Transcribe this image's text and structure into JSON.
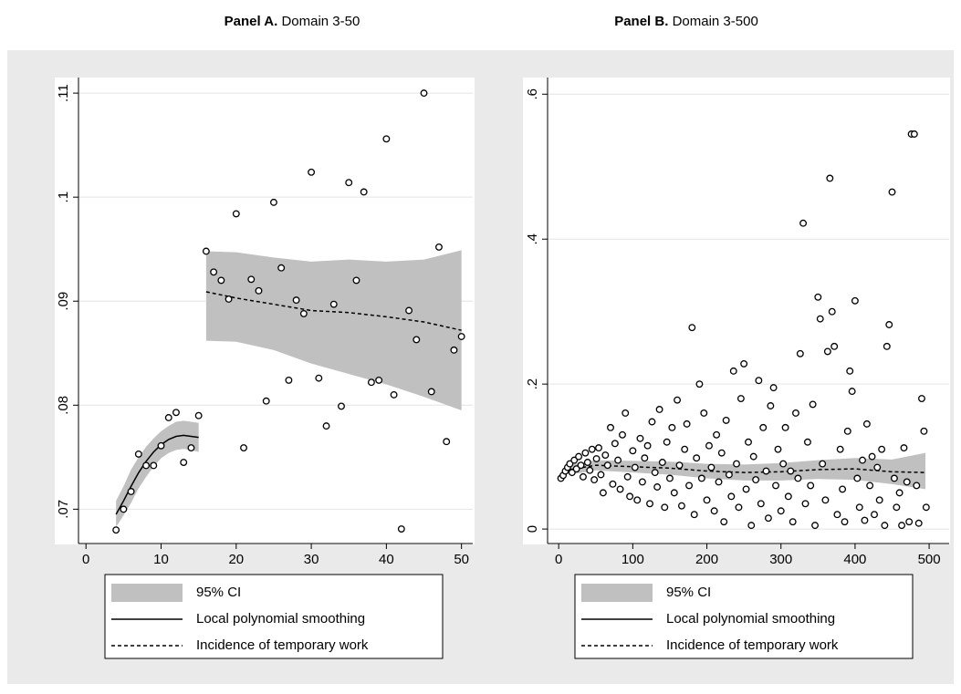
{
  "chart_data": [
    {
      "type": "scatter",
      "panel": "Panel A.",
      "title": "Domain 3-50",
      "x": [
        4,
        5,
        6,
        7,
        8,
        9,
        10,
        11,
        12,
        13,
        14,
        15,
        16,
        17,
        18,
        19,
        20,
        21,
        22,
        23,
        24,
        25,
        26,
        27,
        28,
        29,
        30,
        31,
        32,
        33,
        34,
        35,
        36,
        37,
        38,
        39,
        40,
        41,
        42,
        43,
        44,
        45,
        46,
        47,
        48,
        49,
        50
      ],
      "values": [
        0.068,
        0.07,
        0.0717,
        0.0753,
        0.0742,
        0.0742,
        0.0761,
        0.0788,
        0.0793,
        0.0745,
        0.0759,
        0.079,
        0.0948,
        0.0928,
        0.092,
        0.0902,
        0.0984,
        0.0759,
        0.0921,
        0.091,
        0.0804,
        0.0995,
        0.0932,
        0.0824,
        0.0901,
        0.0888,
        0.1024,
        0.0826,
        0.078,
        0.0897,
        0.0799,
        0.1014,
        0.092,
        0.1005,
        0.0822,
        0.0824,
        0.1056,
        0.081,
        0.0681,
        0.0891,
        0.0863,
        0.11,
        0.0813,
        0.0952,
        0.0765,
        0.0853,
        0.0866
      ],
      "ci_label": "95% CI",
      "ci_color": "#c0c0c0",
      "smooth": {
        "name": "Local polynomial smoothing",
        "color": "#000000",
        "x": [
          4,
          5,
          6,
          7,
          8,
          9,
          10,
          11,
          12,
          13,
          14,
          15
        ],
        "values": [
          0.0695,
          0.0708,
          0.0722,
          0.0735,
          0.0746,
          0.0755,
          0.0762,
          0.0767,
          0.077,
          0.0771,
          0.077,
          0.0769
        ],
        "lower": [
          0.0683,
          0.0694,
          0.0706,
          0.072,
          0.0731,
          0.0741,
          0.0749,
          0.0754,
          0.0757,
          0.0758,
          0.0757,
          0.0755
        ],
        "upper": [
          0.0708,
          0.0722,
          0.0738,
          0.075,
          0.076,
          0.0768,
          0.0775,
          0.078,
          0.0784,
          0.0785,
          0.0784,
          0.0783
        ]
      },
      "trend": {
        "name": "Incidence of temporary work",
        "color": "#000000",
        "x": [
          16,
          20,
          25,
          30,
          35,
          40,
          45,
          50
        ],
        "values": [
          0.0909,
          0.0903,
          0.0897,
          0.0891,
          0.0889,
          0.0885,
          0.088,
          0.0872
        ],
        "lower": [
          0.0862,
          0.0861,
          0.0853,
          0.084,
          0.083,
          0.082,
          0.0808,
          0.0795
        ],
        "upper": [
          0.0948,
          0.0947,
          0.0942,
          0.0938,
          0.094,
          0.0938,
          0.094,
          0.0949
        ]
      },
      "xlim": [
        -1,
        51.5
      ],
      "ylim": [
        0.0667,
        0.1115
      ],
      "xticks": [
        0,
        10,
        20,
        30,
        40,
        50
      ],
      "yticks": [
        {
          "value": 0.07,
          "label": ".07"
        },
        {
          "value": 0.08,
          "label": ".08"
        },
        {
          "value": 0.09,
          "label": ".09"
        },
        {
          "value": 0.1,
          "label": ".1"
        },
        {
          "value": 0.11,
          "label": ".11"
        }
      ],
      "grid": true
    },
    {
      "type": "scatter",
      "panel": "Panel B.",
      "title": "Domain 3-500",
      "x": [
        3,
        6,
        9,
        12,
        15,
        18,
        21,
        24,
        27,
        30,
        33,
        36,
        39,
        42,
        45,
        48,
        51,
        54,
        57,
        60,
        63,
        66,
        70,
        73,
        76,
        80,
        83,
        86,
        90,
        93,
        96,
        100,
        103,
        106,
        110,
        113,
        116,
        120,
        123,
        126,
        130,
        133,
        136,
        140,
        143,
        146,
        150,
        153,
        156,
        160,
        163,
        166,
        170,
        173,
        176,
        180,
        183,
        186,
        190,
        193,
        196,
        200,
        203,
        206,
        210,
        213,
        216,
        220,
        223,
        226,
        230,
        233,
        236,
        240,
        243,
        246,
        250,
        253,
        256,
        260,
        263,
        266,
        270,
        273,
        276,
        280,
        283,
        286,
        290,
        293,
        296,
        300,
        303,
        306,
        310,
        313,
        316,
        320,
        323,
        326,
        330,
        333,
        336,
        340,
        343,
        346,
        350,
        353,
        356,
        360,
        363,
        366,
        369,
        372,
        376,
        380,
        383,
        386,
        390,
        393,
        396,
        400,
        403,
        406,
        410,
        413,
        416,
        420,
        423,
        426,
        430,
        433,
        436,
        440,
        443,
        446,
        450,
        453,
        456,
        460,
        463,
        466,
        470,
        473,
        476,
        480,
        483,
        486,
        490,
        493,
        496
      ],
      "values": [
        0.07,
        0.074,
        0.08,
        0.085,
        0.09,
        0.078,
        0.095,
        0.083,
        0.1,
        0.088,
        0.072,
        0.105,
        0.092,
        0.081,
        0.11,
        0.068,
        0.097,
        0.112,
        0.075,
        0.05,
        0.102,
        0.088,
        0.14,
        0.062,
        0.118,
        0.095,
        0.055,
        0.13,
        0.16,
        0.072,
        0.045,
        0.108,
        0.085,
        0.04,
        0.125,
        0.065,
        0.098,
        0.115,
        0.035,
        0.148,
        0.078,
        0.058,
        0.165,
        0.092,
        0.03,
        0.12,
        0.07,
        0.14,
        0.05,
        0.178,
        0.088,
        0.032,
        0.11,
        0.145,
        0.06,
        0.278,
        0.02,
        0.098,
        0.2,
        0.07,
        0.16,
        0.04,
        0.115,
        0.085,
        0.025,
        0.13,
        0.065,
        0.105,
        0.01,
        0.15,
        0.075,
        0.045,
        0.218,
        0.09,
        0.03,
        0.18,
        0.228,
        0.055,
        0.12,
        0.005,
        0.1,
        0.068,
        0.205,
        0.035,
        0.14,
        0.08,
        0.015,
        0.17,
        0.195,
        0.06,
        0.11,
        0.025,
        0.09,
        0.14,
        0.045,
        0.08,
        0.01,
        0.16,
        0.07,
        0.242,
        0.422,
        0.035,
        0.12,
        0.06,
        0.172,
        0.005,
        0.32,
        0.29,
        0.09,
        0.04,
        0.245,
        0.484,
        0.3,
        0.252,
        0.02,
        0.11,
        0.055,
        0.01,
        0.135,
        0.218,
        0.19,
        0.315,
        0.07,
        0.03,
        0.095,
        0.012,
        0.145,
        0.06,
        0.1,
        0.02,
        0.085,
        0.04,
        0.11,
        0.005,
        0.252,
        0.282,
        0.465,
        0.07,
        0.03,
        0.05,
        0.005,
        0.112,
        0.065,
        0.01,
        0.545,
        0.545,
        0.06,
        0.008,
        0.18,
        0.135,
        0.03
      ],
      "ci_label": "95% CI",
      "ci_color": "#c0c0c0",
      "smooth": {
        "name": "Local polynomial smoothing",
        "color": "#000000",
        "x": [
          0,
          5,
          10,
          15
        ],
        "values": [
          0.068,
          0.074,
          0.079,
          0.082
        ],
        "lower": [
          0.065,
          0.071,
          0.076,
          0.077
        ],
        "upper": [
          0.071,
          0.077,
          0.082,
          0.087
        ]
      },
      "trend": {
        "name": "Incidence of temporary work",
        "color": "#000000",
        "x": [
          15,
          50,
          100,
          150,
          200,
          250,
          300,
          350,
          400,
          450,
          495
        ],
        "values": [
          0.082,
          0.088,
          0.086,
          0.084,
          0.08,
          0.078,
          0.079,
          0.082,
          0.083,
          0.079,
          0.078
        ],
        "lower": [
          0.075,
          0.081,
          0.078,
          0.075,
          0.07,
          0.067,
          0.067,
          0.069,
          0.068,
          0.062,
          0.055
        ],
        "upper": [
          0.089,
          0.095,
          0.094,
          0.093,
          0.09,
          0.089,
          0.091,
          0.095,
          0.098,
          0.096,
          0.105
        ]
      },
      "xlim": [
        -15,
        527
      ],
      "ylim": [
        -0.02,
        0.623
      ],
      "xticks": [
        0,
        100,
        200,
        300,
        400,
        500
      ],
      "yticks": [
        0,
        {
          "value": 0.2,
          "label": ".2"
        },
        {
          "value": 0.4,
          "label": ".4"
        },
        {
          "value": 0.6,
          "label": ".6"
        }
      ],
      "grid": true
    }
  ]
}
